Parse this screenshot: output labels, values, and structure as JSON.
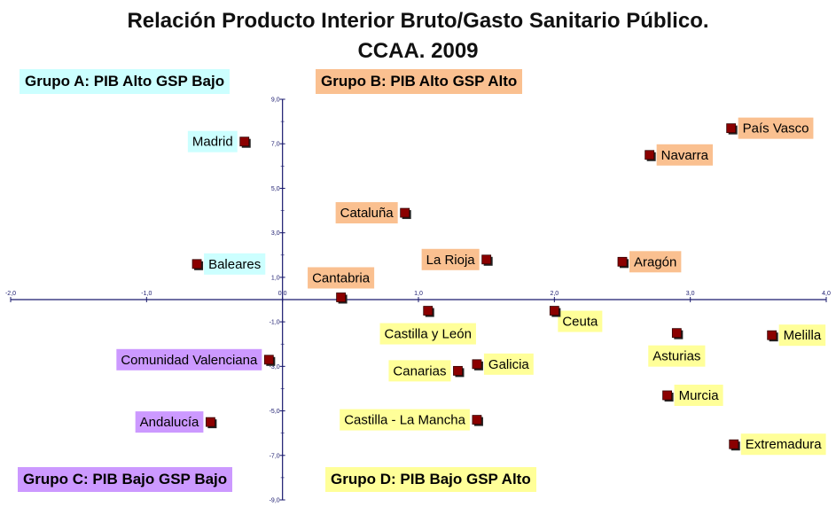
{
  "title_line1": "Relación Producto Interior Bruto/Gasto Sanitario Público.",
  "title_line2": "CCAA. 2009",
  "groups": {
    "a": "Grupo A: PIB Alto GSP Bajo",
    "b": "Grupo B: PIB Alto  GSP Alto",
    "c": "Grupo C: PIB Bajo  GSP Bajo",
    "d": "Grupo D: PIB Bajo  GSP Alto"
  },
  "colors": {
    "group_a": "#ccffff",
    "group_b": "#fac090",
    "group_c": "#cc99ff",
    "group_d": "#ffff99",
    "marker": "#8b0000",
    "axis": "#1a1a6e"
  },
  "chart_data": {
    "type": "scatter",
    "title": "Relación Producto Interior Bruto/Gasto Sanitario Público. CCAA. 2009",
    "xlim": [
      -2.0,
      4.0
    ],
    "ylim": [
      -9.0,
      9.0
    ],
    "x_ticks": [
      "-2,0",
      "-1,0",
      "0,0",
      "1,0",
      "2,0",
      "3,0",
      "4,0"
    ],
    "y_ticks": [
      "9,0",
      "7,0",
      "5,0",
      "3,0",
      "1,0",
      "-1,0",
      "-3,0",
      "-5,0",
      "-7,0",
      "-9,0"
    ],
    "grid": false,
    "points": [
      {
        "label": "País Vasco",
        "x": 3.3,
        "y": 7.7,
        "group": "b",
        "label_pos": "right"
      },
      {
        "label": "Navarra",
        "x": 2.7,
        "y": 6.5,
        "group": "b",
        "label_pos": "right"
      },
      {
        "label": "Cataluña",
        "x": 0.9,
        "y": 3.9,
        "group": "b",
        "label_pos": "left"
      },
      {
        "label": "La Rioja",
        "x": 1.5,
        "y": 1.8,
        "group": "b",
        "label_pos": "left"
      },
      {
        "label": "Aragón",
        "x": 2.5,
        "y": 1.7,
        "group": "b",
        "label_pos": "right"
      },
      {
        "label": "Cantabria",
        "x": 0.43,
        "y": 0.1,
        "group": "b",
        "label_pos": "above"
      },
      {
        "label": "Madrid",
        "x": -0.28,
        "y": 7.1,
        "group": "a",
        "label_pos": "left"
      },
      {
        "label": "Baleares",
        "x": -0.63,
        "y": 1.6,
        "group": "a",
        "label_pos": "right"
      },
      {
        "label": "Comunidad Valenciana",
        "x": -0.1,
        "y": -2.7,
        "group": "c",
        "label_pos": "left"
      },
      {
        "label": "Andalucía",
        "x": -0.53,
        "y": -5.5,
        "group": "c",
        "label_pos": "left"
      },
      {
        "label": "Castilla y León",
        "x": 1.07,
        "y": -0.5,
        "group": "d",
        "label_pos": "below"
      },
      {
        "label": "Ceuta",
        "x": 2.0,
        "y": -0.5,
        "group": "d",
        "label_pos": "below-right"
      },
      {
        "label": "Asturias",
        "x": 2.9,
        "y": -1.5,
        "group": "d",
        "label_pos": "below"
      },
      {
        "label": "Melilla",
        "x": 3.6,
        "y": -1.6,
        "group": "d",
        "label_pos": "right"
      },
      {
        "label": "Galicia",
        "x": 1.43,
        "y": -2.9,
        "group": "d",
        "label_pos": "right"
      },
      {
        "label": "Canarias",
        "x": 1.29,
        "y": -3.2,
        "group": "d",
        "label_pos": "left"
      },
      {
        "label": "Murcia",
        "x": 2.83,
        "y": -4.3,
        "group": "d",
        "label_pos": "right"
      },
      {
        "label": "Castilla - La Mancha",
        "x": 1.43,
        "y": -5.4,
        "group": "d",
        "label_pos": "left"
      },
      {
        "label": "Extremadura",
        "x": 3.32,
        "y": -6.5,
        "group": "d",
        "label_pos": "right"
      }
    ]
  }
}
